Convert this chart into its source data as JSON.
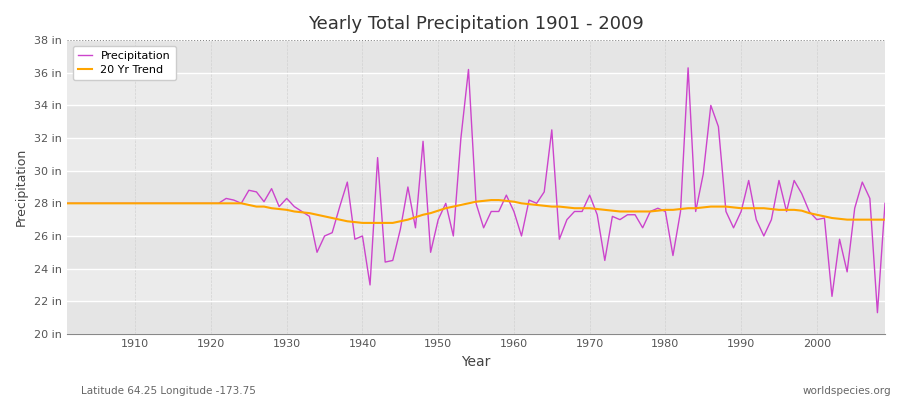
{
  "title": "Yearly Total Precipitation 1901 - 2009",
  "ylabel": "Precipitation",
  "xlabel": "Year",
  "subtitle_left": "Latitude 64.25 Longitude -173.75",
  "subtitle_right": "worldspecies.org",
  "precip_color": "#CC44CC",
  "trend_color": "#FFA500",
  "fig_bg_color": "#FFFFFF",
  "plot_bg_color": "#EBEBEB",
  "ylim": [
    20,
    38
  ],
  "ytick_labels": [
    "20 in",
    "22 in",
    "24 in",
    "26 in",
    "28 in",
    "30 in",
    "32 in",
    "34 in",
    "36 in",
    "38 in"
  ],
  "ytick_values": [
    20,
    22,
    24,
    26,
    28,
    30,
    32,
    34,
    36,
    38
  ],
  "years": [
    1901,
    1902,
    1903,
    1904,
    1905,
    1906,
    1907,
    1908,
    1909,
    1910,
    1911,
    1912,
    1913,
    1914,
    1915,
    1916,
    1917,
    1918,
    1919,
    1920,
    1921,
    1922,
    1923,
    1924,
    1925,
    1926,
    1927,
    1928,
    1929,
    1930,
    1931,
    1932,
    1933,
    1934,
    1935,
    1936,
    1937,
    1938,
    1939,
    1940,
    1941,
    1942,
    1943,
    1944,
    1945,
    1946,
    1947,
    1948,
    1949,
    1950,
    1951,
    1952,
    1953,
    1954,
    1955,
    1956,
    1957,
    1958,
    1959,
    1960,
    1961,
    1962,
    1963,
    1964,
    1965,
    1966,
    1967,
    1968,
    1969,
    1970,
    1971,
    1972,
    1973,
    1974,
    1975,
    1976,
    1977,
    1978,
    1979,
    1980,
    1981,
    1982,
    1983,
    1984,
    1985,
    1986,
    1987,
    1988,
    1989,
    1990,
    1991,
    1992,
    1993,
    1994,
    1995,
    1996,
    1997,
    1998,
    1999,
    2000,
    2001,
    2002,
    2003,
    2004,
    2005,
    2006,
    2007,
    2008,
    2009
  ],
  "precip": [
    28.0,
    28.0,
    28.0,
    28.0,
    28.0,
    28.0,
    28.0,
    28.0,
    28.0,
    28.0,
    28.0,
    28.0,
    28.0,
    28.0,
    28.0,
    28.0,
    28.0,
    28.0,
    28.0,
    28.0,
    28.0,
    28.3,
    28.2,
    28.0,
    28.8,
    28.7,
    28.1,
    28.9,
    27.8,
    28.3,
    27.8,
    27.5,
    27.2,
    25.0,
    26.0,
    26.2,
    27.8,
    29.3,
    25.8,
    26.0,
    23.0,
    30.8,
    24.4,
    24.5,
    26.4,
    29.0,
    26.5,
    31.8,
    25.0,
    27.0,
    28.0,
    26.0,
    32.0,
    36.2,
    28.0,
    26.5,
    27.5,
    27.5,
    28.5,
    27.5,
    26.0,
    28.2,
    28.0,
    28.7,
    32.5,
    25.8,
    27.0,
    27.5,
    27.5,
    28.5,
    27.3,
    24.5,
    27.2,
    27.0,
    27.3,
    27.3,
    26.5,
    27.5,
    27.7,
    27.5,
    24.8,
    27.5,
    36.3,
    27.5,
    29.8,
    34.0,
    32.7,
    27.5,
    26.5,
    27.5,
    29.4,
    27.0,
    26.0,
    27.0,
    29.4,
    27.5,
    29.4,
    28.6,
    27.5,
    27.0,
    27.1,
    22.3,
    25.8,
    23.8,
    27.7,
    29.3,
    28.3,
    21.3,
    28.0
  ],
  "trend": [
    28.0,
    28.0,
    28.0,
    28.0,
    28.0,
    28.0,
    28.0,
    28.0,
    28.0,
    28.0,
    28.0,
    28.0,
    28.0,
    28.0,
    28.0,
    28.0,
    28.0,
    28.0,
    28.0,
    28.0,
    28.0,
    28.0,
    28.0,
    28.0,
    27.9,
    27.8,
    27.8,
    27.7,
    27.65,
    27.6,
    27.5,
    27.45,
    27.4,
    27.3,
    27.2,
    27.1,
    27.0,
    26.9,
    26.85,
    26.8,
    26.8,
    26.8,
    26.8,
    26.8,
    26.9,
    27.0,
    27.15,
    27.3,
    27.4,
    27.55,
    27.7,
    27.8,
    27.9,
    28.0,
    28.1,
    28.15,
    28.2,
    28.2,
    28.15,
    28.1,
    28.0,
    27.95,
    27.9,
    27.85,
    27.8,
    27.8,
    27.75,
    27.7,
    27.7,
    27.7,
    27.65,
    27.6,
    27.55,
    27.5,
    27.5,
    27.5,
    27.5,
    27.5,
    27.55,
    27.6,
    27.6,
    27.65,
    27.7,
    27.7,
    27.75,
    27.8,
    27.8,
    27.8,
    27.75,
    27.7,
    27.7,
    27.7,
    27.7,
    27.65,
    27.6,
    27.6,
    27.6,
    27.55,
    27.4,
    27.3,
    27.2,
    27.1,
    27.05,
    27.0,
    27.0,
    27.0,
    27.0,
    27.0,
    27.0
  ]
}
